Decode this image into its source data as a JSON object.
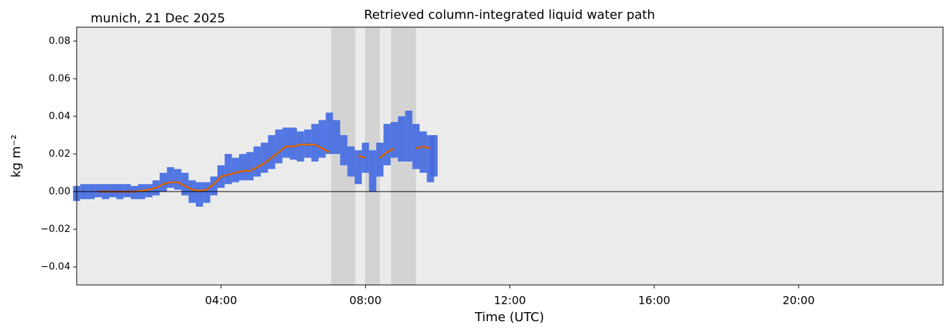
{
  "chart_data": {
    "type": "band-line",
    "title": "Retrieved column-integrated liquid water path",
    "subtitle": "munich, 21 Dec 2025",
    "x_label": "Time (UTC)",
    "y_label": "kg m⁻²",
    "xlim": [
      0,
      24
    ],
    "xticks": [
      {
        "value": 4,
        "label": "04:00"
      },
      {
        "value": 8,
        "label": "08:00"
      },
      {
        "value": 12,
        "label": "12:00"
      },
      {
        "value": 16,
        "label": "16:00"
      },
      {
        "value": 20,
        "label": "20:00"
      }
    ],
    "ylim": [
      -0.0496,
      0.0874
    ],
    "yticks": [
      {
        "value": -0.04,
        "label": "−0.04"
      },
      {
        "value": -0.02,
        "label": "−0.02"
      },
      {
        "value": 0,
        "label": "0.00"
      },
      0.02,
      0.04,
      0.06,
      0.08
    ],
    "hline": 0,
    "background": "#ebebeb",
    "shaded_spans": [
      [
        7.05,
        7.72
      ],
      [
        7.99,
        8.4
      ],
      [
        8.71,
        9.4
      ]
    ],
    "shade_color": "#d3d3d3",
    "series": [
      {
        "color": "#4169e1",
        "x": [
          0,
          0.2,
          0.4,
          0.6,
          0.8,
          1,
          1.2,
          1.4,
          1.6,
          1.8,
          2,
          2.2,
          2.4,
          2.6,
          2.8,
          3,
          3.2,
          3.4,
          3.6,
          3.8,
          4,
          4.2,
          4.4,
          4.6,
          4.8,
          5,
          5.2,
          5.4,
          5.6,
          5.8,
          6,
          6.2,
          6.4,
          6.6,
          6.8,
          7,
          7.2,
          7.4,
          7.6,
          7.8,
          8,
          8.2,
          8.4,
          8.6,
          8.8,
          9,
          9.2,
          9.4,
          9.6,
          9.8,
          9.9
        ],
        "low": [
          -0.005,
          -0.004,
          -0.004,
          -0.003,
          -0.004,
          -0.003,
          -0.004,
          -0.003,
          -0.004,
          -0.004,
          -0.003,
          -0.002,
          0,
          0.002,
          0.001,
          -0.002,
          -0.006,
          -0.008,
          -0.006,
          -0.002,
          0.002,
          0.004,
          0.005,
          0.006,
          0.006,
          0.008,
          0.01,
          0.012,
          0.015,
          0.018,
          0.017,
          0.016,
          0.018,
          0.016,
          0.018,
          0.02,
          0.02,
          0.014,
          0.008,
          0.004,
          0.01,
          0,
          0.008,
          0.014,
          0.018,
          0.016,
          0.016,
          0.012,
          0.01,
          0.005,
          0.008
        ],
        "high": [
          0.003,
          0.004,
          0.004,
          0.004,
          0.004,
          0.004,
          0.004,
          0.004,
          0.003,
          0.004,
          0.004,
          0.006,
          0.01,
          0.013,
          0.012,
          0.01,
          0.006,
          0.005,
          0.005,
          0.008,
          0.014,
          0.02,
          0.018,
          0.02,
          0.021,
          0.024,
          0.026,
          0.03,
          0.033,
          0.034,
          0.034,
          0.032,
          0.033,
          0.036,
          0.038,
          0.042,
          0.038,
          0.03,
          0.024,
          0.022,
          0.026,
          0.022,
          0.026,
          0.036,
          0.037,
          0.04,
          0.043,
          0.036,
          0.032,
          0.03,
          0.03
        ]
      },
      {
        "color": "#ff7f0e",
        "x": [
          0.6,
          0.8,
          1,
          1.2,
          1.4,
          1.6,
          1.8,
          2,
          2.2,
          2.4,
          2.6,
          2.8,
          3,
          3.2,
          3.4,
          3.6,
          3.8,
          4,
          4.2,
          4.4,
          4.6,
          4.8,
          5,
          5.2,
          5.4,
          5.6,
          5.8,
          6,
          6.2,
          6.4,
          6.6,
          6.8,
          7,
          7.2,
          7.4,
          7.6,
          7.8,
          8,
          8.2,
          8.4,
          8.6,
          8.8,
          9,
          9.2,
          9.4,
          9.6,
          9.8
        ],
        "values": [
          0,
          0,
          0,
          0,
          0,
          0,
          0.0005,
          0.001,
          0.002,
          0.004,
          0.005,
          0.005,
          0.003,
          0.001,
          0.0005,
          0.001,
          0.004,
          0.008,
          0.009,
          0.01,
          0.011,
          0.011,
          0.013,
          0.015,
          0.018,
          0.021,
          0.024,
          0.024,
          0.025,
          0.025,
          0.025,
          0.023,
          0.021,
          null,
          null,
          null,
          0.019,
          0.018,
          null,
          0.018,
          0.021,
          0.023,
          null,
          null,
          0.023,
          0.024,
          0.023
        ]
      }
    ]
  }
}
